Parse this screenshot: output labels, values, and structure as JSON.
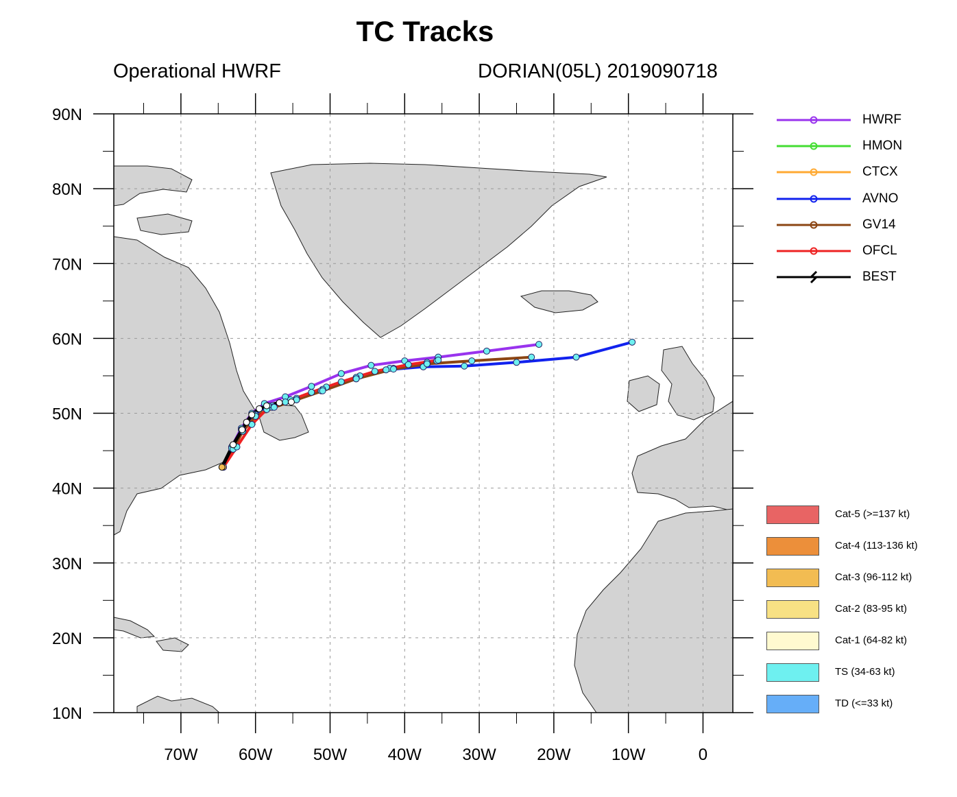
{
  "title": "TC Tracks",
  "subtitle_left": "Operational HWRF",
  "subtitle_right": "DORIAN(05L) 2019090718",
  "map": {
    "lon_range": [
      -79,
      4
    ],
    "lat_range": [
      10,
      90
    ],
    "lat_ticks": [
      "90N",
      "80N",
      "70N",
      "60N",
      "50N",
      "40N",
      "30N",
      "20N",
      "10N"
    ],
    "lon_ticks": [
      "70W",
      "60W",
      "50W",
      "40W",
      "30W",
      "20W",
      "10W",
      "0"
    ],
    "grid": "dashed",
    "land_color": "#d3d3d3",
    "ocean_color": "#ffffff"
  },
  "legend": {
    "tracks": [
      {
        "label": "HWRF",
        "color": "#9933ee"
      },
      {
        "label": "HMON",
        "color": "#44dd33"
      },
      {
        "label": "CTCX",
        "color": "#ffaa33"
      },
      {
        "label": "AVNO",
        "color": "#1122ee"
      },
      {
        "label": "GV14",
        "color": "#8b4513"
      },
      {
        "label": "OFCL",
        "color": "#ee2222"
      },
      {
        "label": "BEST",
        "color": "#000000"
      }
    ],
    "categories": [
      {
        "label": "Cat-5 (>=137 kt)",
        "color": "#e86464"
      },
      {
        "label": "Cat-4 (113-136 kt)",
        "color": "#ec8f3a"
      },
      {
        "label": "Cat-3 (96-112 kt)",
        "color": "#f2bc52"
      },
      {
        "label": "Cat-2 (83-95 kt)",
        "color": "#f8e184"
      },
      {
        "label": "Cat-1 (64-82 kt)",
        "color": "#fffad0"
      },
      {
        "label": "TS (34-63 kt)",
        "color": "#6ef0f0"
      },
      {
        "label": "TD (<=33 kt)",
        "color": "#66aef8"
      }
    ]
  },
  "chart_data": {
    "type": "scatter",
    "series": [
      {
        "name": "HWRF",
        "color": "#9933ee",
        "lon": [
          -64.3,
          -63.2,
          -61.9,
          -60.5,
          -58.8,
          -56.0,
          -52.5,
          -48.5,
          -44.5,
          -40.0,
          -35.5,
          -29.0,
          -22.0
        ],
        "lat": [
          42.8,
          45.5,
          48.0,
          50.0,
          51.3,
          52.2,
          53.6,
          55.3,
          56.4,
          57.0,
          57.5,
          58.3,
          59.2
        ]
      },
      {
        "name": "HMON",
        "color": "#44dd33",
        "lon": [
          -64.3,
          -63.0,
          -61.7,
          -60.0,
          -57.8,
          -54.5,
          -50.5,
          -46.0,
          -41.5,
          -37.0,
          -35.7
        ],
        "lat": [
          42.8,
          45.3,
          47.8,
          49.8,
          51.0,
          52.0,
          53.5,
          55.0,
          56.0,
          56.8,
          57.0
        ]
      },
      {
        "name": "CTCX",
        "color": "#ffaa33",
        "lon": [
          -64.3,
          -63.0,
          -61.7,
          -60.0,
          -57.8,
          -54.5,
          -51.0,
          -46.5,
          -42.0
        ],
        "lat": [
          42.8,
          45.2,
          47.6,
          49.6,
          50.8,
          51.8,
          53.2,
          54.8,
          56.0
        ]
      },
      {
        "name": "AVNO",
        "color": "#1122ee",
        "lon": [
          -64.3,
          -63.2,
          -61.9,
          -60.3,
          -58.3,
          -55.3,
          -51.2,
          -46.5,
          -42.5,
          -37.5,
          -32.0,
          -25.0,
          -17.0,
          -9.5
        ],
        "lat": [
          42.8,
          45.3,
          47.8,
          49.8,
          51.0,
          51.8,
          53.0,
          54.6,
          55.8,
          56.2,
          56.3,
          56.8,
          57.5,
          59.5
        ]
      },
      {
        "name": "GV14",
        "color": "#8b4513",
        "lon": [
          -64.3,
          -63.0,
          -61.7,
          -60.0,
          -57.5,
          -54.5,
          -51.0,
          -46.5,
          -41.5,
          -37.0,
          -31.0,
          -23.0
        ],
        "lat": [
          42.8,
          45.2,
          47.6,
          49.6,
          50.8,
          51.8,
          53.0,
          54.6,
          55.9,
          56.6,
          57.0,
          57.5
        ]
      },
      {
        "name": "OFCL",
        "color": "#ee2222",
        "lon": [
          -64.3,
          -62.5,
          -60.5,
          -58.5,
          -56.0,
          -52.5,
          -48.5,
          -44.0,
          -39.5,
          -35.5
        ],
        "lat": [
          42.8,
          45.5,
          48.5,
          50.5,
          51.5,
          52.8,
          54.2,
          55.6,
          56.5,
          57.1
        ]
      },
      {
        "name": "BEST",
        "color": "#000000",
        "lon": [
          -64.5,
          -63.0,
          -61.8,
          -61.2,
          -60.5,
          -59.5,
          -58.5,
          -56.8,
          -55.2
        ],
        "lat": [
          42.8,
          45.8,
          47.8,
          48.8,
          49.8,
          50.6,
          51.0,
          51.4,
          51.5
        ]
      }
    ]
  }
}
